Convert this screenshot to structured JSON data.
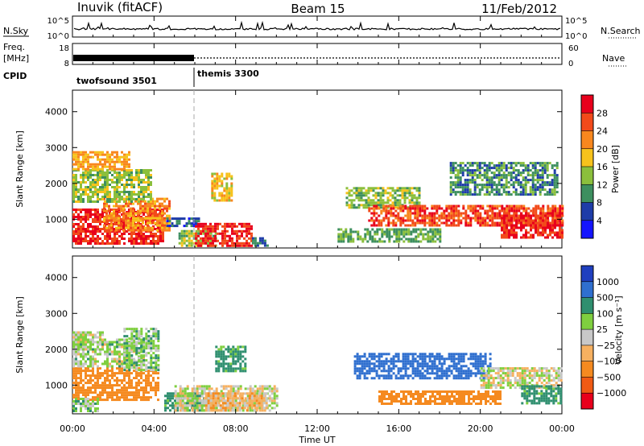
{
  "header": {
    "station": "Inuvik (fitACF)",
    "beam": "Beam 15",
    "date": "11/Feb/2012"
  },
  "top_panels": {
    "nsky_label": "N.Sky",
    "nsky_ticks": [
      "10^5",
      "10^0"
    ],
    "nsearch_label": "N.Search",
    "nsearch_ticks": [
      "10^5",
      "10^0"
    ],
    "freq_label_line1": "Freq.",
    "freq_label_line2": "[MHz]",
    "freq_ticks": [
      "18",
      "8"
    ],
    "nave_label": "Nave",
    "nave_ticks": [
      "60",
      "0"
    ],
    "cpid_label": "CPID",
    "cpid_segments": [
      {
        "name": "twofsound 3501",
        "start_hour": 0,
        "end_hour": 6
      },
      {
        "name": "themis 3300",
        "start_hour": 6,
        "end_hour": 24
      }
    ]
  },
  "axes": {
    "ylabel": "Slant Range [km]",
    "y_ticks": [
      "1000",
      "2000",
      "3000",
      "4000"
    ],
    "xlabel": "Time UT",
    "x_ticks": [
      "00:00",
      "04:00",
      "08:00",
      "12:00",
      "16:00",
      "20:00",
      "00:00"
    ]
  },
  "colorbars": {
    "power": {
      "label": "Power [dB]",
      "ticks": [
        "28",
        "24",
        "20",
        "16",
        "12",
        "8",
        "4"
      ],
      "colors": [
        "#e8001c",
        "#f24a1a",
        "#f8871e",
        "#f7c21c",
        "#8bbf3c",
        "#3d8f5f",
        "#1e3ca8",
        "#1414ff"
      ]
    },
    "velocity": {
      "label": "Velocity [m s⁻¹]",
      "ticks": [
        "1000",
        "500",
        "100",
        "25",
        "−25",
        "−100",
        "−500",
        "−1000"
      ],
      "colors": [
        "#1f3fbf",
        "#2f6fcf",
        "#2f8f6f",
        "#7fcf3f",
        "#c8c8c8",
        "#f6b060",
        "#f58a20",
        "#f05a14",
        "#e8001c"
      ]
    }
  },
  "chart_data": [
    {
      "type": "heatmap",
      "panel": "power",
      "x_unit": "hours UT",
      "xlim": [
        0,
        24
      ],
      "ylim": [
        200,
        4600
      ],
      "cells": [
        {
          "x0": 0.0,
          "x1": 4.5,
          "y0": 350,
          "y1": 1300,
          "value": 28
        },
        {
          "x0": 1.5,
          "x1": 4.8,
          "y0": 700,
          "y1": 1600,
          "value": 22
        },
        {
          "x0": 0.0,
          "x1": 3.8,
          "y0": 1500,
          "y1": 2400,
          "value": 14
        },
        {
          "x0": 0.0,
          "x1": 2.8,
          "y0": 2400,
          "y1": 2900,
          "value": 20
        },
        {
          "x0": 4.6,
          "x1": 6.2,
          "y0": 800,
          "y1": 1050,
          "value": 6
        },
        {
          "x0": 5.2,
          "x1": 7.0,
          "y0": 250,
          "y1": 700,
          "value": 14
        },
        {
          "x0": 6.0,
          "x1": 8.8,
          "y0": 250,
          "y1": 900,
          "value": 28
        },
        {
          "x0": 8.8,
          "x1": 9.6,
          "y0": 250,
          "y1": 500,
          "value": 8
        },
        {
          "x0": 6.8,
          "x1": 7.8,
          "y0": 1500,
          "y1": 2300,
          "value": 18
        },
        {
          "x0": 13.4,
          "x1": 17.0,
          "y0": 1300,
          "y1": 1900,
          "value": 14
        },
        {
          "x0": 14.5,
          "x1": 24.0,
          "y0": 800,
          "y1": 1400,
          "value": 26
        },
        {
          "x0": 13.0,
          "x1": 18.0,
          "y0": 350,
          "y1": 750,
          "value": 12
        },
        {
          "x0": 18.5,
          "x1": 23.8,
          "y0": 1700,
          "y1": 2600,
          "value": 10
        },
        {
          "x0": 21.0,
          "x1": 24.0,
          "y0": 500,
          "y1": 1200,
          "value": 28
        }
      ]
    },
    {
      "type": "heatmap",
      "panel": "velocity",
      "x_unit": "hours UT",
      "xlim": [
        0,
        24
      ],
      "ylim": [
        200,
        4600
      ],
      "cells": [
        {
          "x0": 0.0,
          "x1": 4.2,
          "y0": 600,
          "y1": 1500,
          "value": -300
        },
        {
          "x0": 0.0,
          "x1": 3.5,
          "y0": 1500,
          "y1": 2300,
          "value": 40
        },
        {
          "x0": 0.0,
          "x1": 1.5,
          "y0": 2200,
          "y1": 2500,
          "value": 0
        },
        {
          "x0": 2.5,
          "x1": 4.2,
          "y0": 1400,
          "y1": 2600,
          "value": 60
        },
        {
          "x0": 4.5,
          "x1": 6.5,
          "y0": 300,
          "y1": 800,
          "value": 150
        },
        {
          "x0": 5.0,
          "x1": 10.0,
          "y0": 300,
          "y1": 1000,
          "value": 0
        },
        {
          "x0": 6.5,
          "x1": 9.5,
          "y0": 300,
          "y1": 800,
          "value": -60
        },
        {
          "x0": 7.0,
          "x1": 8.5,
          "y0": 1400,
          "y1": 2100,
          "value": 150
        },
        {
          "x0": 13.8,
          "x1": 20.5,
          "y0": 1200,
          "y1": 1900,
          "value": 800
        },
        {
          "x0": 15.0,
          "x1": 21.0,
          "y0": 450,
          "y1": 850,
          "value": -300
        },
        {
          "x0": 20.0,
          "x1": 24.0,
          "y0": 900,
          "y1": 1500,
          "value": 0
        },
        {
          "x0": 22.0,
          "x1": 24.0,
          "y0": 500,
          "y1": 1000,
          "value": 150
        },
        {
          "x0": 0.0,
          "x1": 1.2,
          "y0": 250,
          "y1": 650,
          "value": 60
        }
      ]
    }
  ]
}
